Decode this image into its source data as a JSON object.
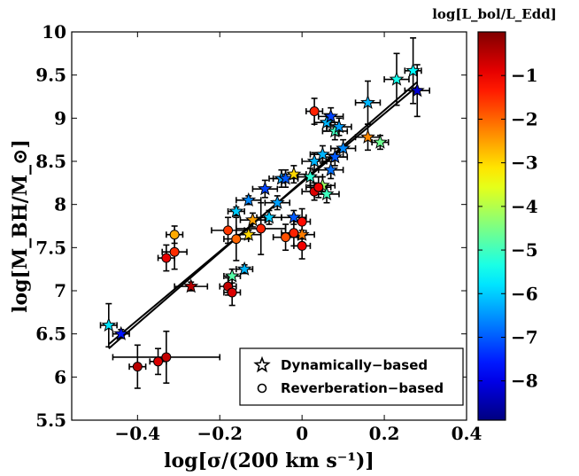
{
  "chart_data": {
    "type": "scatter",
    "xlabel": "log[σ/(200 km s⁻¹)]",
    "ylabel": "log[M_BH/M_⊙]",
    "colorbar_label": "log[L_bol/L_Edd]",
    "xlim": [
      -0.56,
      0.4
    ],
    "ylim": [
      5.5,
      10.0
    ],
    "xticks": [
      "−0.4",
      "−0.2",
      "0",
      "0.2",
      "0.4"
    ],
    "xtick_values": [
      -0.4,
      -0.2,
      0,
      0.2,
      0.4
    ],
    "yticks": [
      "5.5",
      "6",
      "6.5",
      "7",
      "7.5",
      "8",
      "8.5",
      "9",
      "9.5",
      "10"
    ],
    "ytick_values": [
      5.5,
      6,
      6.5,
      7,
      7.5,
      8,
      8.5,
      9,
      9.5,
      10
    ],
    "colorbar": {
      "range": [
        -8.9,
        0.0
      ],
      "ticks": [
        "−1",
        "−2",
        "−3",
        "−4",
        "−5",
        "−6",
        "−7",
        "−8"
      ],
      "tick_values": [
        -1,
        -2,
        -3,
        -4,
        -5,
        -6,
        -7,
        -8
      ],
      "colormap": "jet"
    },
    "legend": {
      "position": "bottom-right",
      "entries": [
        {
          "label": "Dynamically−based",
          "marker": "star"
        },
        {
          "label": "Reverberation−based",
          "marker": "circle"
        }
      ]
    },
    "fit_lines": [
      {
        "x": [
          -0.47,
          0.28
        ],
        "y": [
          6.38,
          9.37
        ]
      },
      {
        "x": [
          -0.47,
          0.28
        ],
        "y": [
          6.33,
          9.42
        ]
      }
    ],
    "series": [
      {
        "name": "Dynamically−based",
        "marker": "star",
        "points": [
          {
            "x": -0.47,
            "y": 6.6,
            "xerr": 0.02,
            "yerr": 0.25,
            "c": -5.8
          },
          {
            "x": -0.44,
            "y": 6.5,
            "xerr": 0.02,
            "yerr": 0.05,
            "c": -7.6
          },
          {
            "x": -0.27,
            "y": 7.05,
            "xerr": 0.04,
            "yerr": 0.05,
            "c": -0.5
          },
          {
            "x": -0.17,
            "y": 7.17,
            "xerr": 0.02,
            "yerr": 0.08,
            "c": -4.8
          },
          {
            "x": -0.14,
            "y": 7.25,
            "xerr": 0.02,
            "yerr": 0.05,
            "c": -6.2
          },
          {
            "x": -0.13,
            "y": 7.65,
            "xerr": 0.03,
            "yerr": 0.05,
            "c": -3.0
          },
          {
            "x": -0.12,
            "y": 7.82,
            "xerr": 0.03,
            "yerr": 0.08,
            "c": -2.5
          },
          {
            "x": -0.16,
            "y": 7.92,
            "xerr": 0.02,
            "yerr": 0.05,
            "c": -6.0
          },
          {
            "x": -0.13,
            "y": 8.05,
            "xerr": 0.03,
            "yerr": 0.05,
            "c": -6.6
          },
          {
            "x": -0.08,
            "y": 7.85,
            "xerr": 0.03,
            "yerr": 0.08,
            "c": -6.0
          },
          {
            "x": -0.09,
            "y": 8.18,
            "xerr": 0.03,
            "yerr": 0.1,
            "c": -7.2
          },
          {
            "x": -0.05,
            "y": 8.3,
            "xerr": 0.03,
            "yerr": 0.1,
            "c": -6.4
          },
          {
            "x": -0.04,
            "y": 8.3,
            "xerr": 0.03,
            "yerr": 0.1,
            "c": -7.0
          },
          {
            "x": -0.06,
            "y": 8.02,
            "xerr": 0.03,
            "yerr": 0.08,
            "c": -6.4
          },
          {
            "x": -0.02,
            "y": 7.85,
            "xerr": 0.03,
            "yerr": 0.08,
            "c": -7.0
          },
          {
            "x": 0.0,
            "y": 7.65,
            "xerr": 0.03,
            "yerr": 0.05,
            "c": -2.2
          },
          {
            "x": -0.02,
            "y": 8.35,
            "xerr": 0.03,
            "yerr": 0.1,
            "c": -3.0
          },
          {
            "x": 0.02,
            "y": 8.32,
            "xerr": 0.03,
            "yerr": 0.1,
            "c": -5.2
          },
          {
            "x": 0.03,
            "y": 8.5,
            "xerr": 0.03,
            "yerr": 0.1,
            "c": -6.2
          },
          {
            "x": 0.05,
            "y": 8.22,
            "xerr": 0.03,
            "yerr": 0.1,
            "c": -4.2
          },
          {
            "x": 0.06,
            "y": 8.12,
            "xerr": 0.03,
            "yerr": 0.1,
            "c": -5.0
          },
          {
            "x": 0.05,
            "y": 8.58,
            "xerr": 0.03,
            "yerr": 0.1,
            "c": -6.2
          },
          {
            "x": 0.07,
            "y": 8.4,
            "xerr": 0.03,
            "yerr": 0.1,
            "c": -6.8
          },
          {
            "x": 0.08,
            "y": 8.85,
            "xerr": 0.03,
            "yerr": 0.1,
            "c": -5.0
          },
          {
            "x": 0.08,
            "y": 8.55,
            "xerr": 0.03,
            "yerr": 0.1,
            "c": -7.0
          },
          {
            "x": 0.06,
            "y": 8.95,
            "xerr": 0.03,
            "yerr": 0.1,
            "c": -6.2
          },
          {
            "x": 0.07,
            "y": 9.02,
            "xerr": 0.03,
            "yerr": 0.1,
            "c": -7.2
          },
          {
            "x": 0.09,
            "y": 8.9,
            "xerr": 0.03,
            "yerr": 0.1,
            "c": -6.4
          },
          {
            "x": 0.1,
            "y": 8.65,
            "xerr": 0.03,
            "yerr": 0.1,
            "c": -6.6
          },
          {
            "x": 0.16,
            "y": 8.78,
            "xerr": 0.03,
            "yerr": 0.15,
            "c": -2.3
          },
          {
            "x": 0.19,
            "y": 8.72,
            "xerr": 0.02,
            "yerr": 0.08,
            "c": -4.6
          },
          {
            "x": 0.16,
            "y": 9.18,
            "xerr": 0.03,
            "yerr": 0.25,
            "c": -6.2
          },
          {
            "x": 0.23,
            "y": 9.45,
            "xerr": 0.03,
            "yerr": 0.3,
            "c": -5.4
          },
          {
            "x": 0.27,
            "y": 9.55,
            "xerr": 0.02,
            "yerr": 0.38,
            "c": -5.6
          },
          {
            "x": 0.28,
            "y": 9.32,
            "xerr": 0.03,
            "yerr": 0.3,
            "c": -8.2
          }
        ]
      },
      {
        "name": "Reverberation−based",
        "marker": "circle",
        "points": [
          {
            "x": -0.4,
            "y": 6.12,
            "xerr": 0.02,
            "yerr": 0.25,
            "c": -0.5
          },
          {
            "x": -0.35,
            "y": 6.18,
            "xerr": 0.02,
            "yerr": 0.15,
            "c": -0.8
          },
          {
            "x": -0.33,
            "y": 6.23,
            "xerr": 0.13,
            "yerr": 0.3,
            "c": -0.6
          },
          {
            "x": -0.33,
            "y": 7.38,
            "xerr": 0.02,
            "yerr": 0.15,
            "c": -0.9
          },
          {
            "x": -0.31,
            "y": 7.45,
            "xerr": 0.03,
            "yerr": 0.2,
            "c": -1.5
          },
          {
            "x": -0.31,
            "y": 7.65,
            "xerr": 0.02,
            "yerr": 0.1,
            "c": -2.6
          },
          {
            "x": -0.18,
            "y": 7.05,
            "xerr": 0.02,
            "yerr": 0.1,
            "c": -0.6
          },
          {
            "x": -0.17,
            "y": 6.98,
            "xerr": 0.02,
            "yerr": 0.15,
            "c": -0.8
          },
          {
            "x": -0.18,
            "y": 7.7,
            "xerr": 0.04,
            "yerr": 0.15,
            "c": -1.6
          },
          {
            "x": -0.16,
            "y": 7.6,
            "xerr": 0.03,
            "yerr": 0.25,
            "c": -2.0
          },
          {
            "x": -0.1,
            "y": 7.72,
            "xerr": 0.06,
            "yerr": 0.3,
            "c": -1.4
          },
          {
            "x": -0.04,
            "y": 7.62,
            "xerr": 0.03,
            "yerr": 0.15,
            "c": -1.8
          },
          {
            "x": -0.02,
            "y": 7.67,
            "xerr": 0.03,
            "yerr": 0.15,
            "c": -1.4
          },
          {
            "x": 0.0,
            "y": 7.8,
            "xerr": 0.02,
            "yerr": 0.15,
            "c": -1.2
          },
          {
            "x": 0.0,
            "y": 7.52,
            "xerr": 0.02,
            "yerr": 0.15,
            "c": -1.0
          },
          {
            "x": 0.03,
            "y": 8.15,
            "xerr": 0.03,
            "yerr": 0.1,
            "c": -0.8
          },
          {
            "x": 0.04,
            "y": 8.2,
            "xerr": 0.03,
            "yerr": 0.12,
            "c": -1.0
          },
          {
            "x": 0.03,
            "y": 9.08,
            "xerr": 0.02,
            "yerr": 0.15,
            "c": -1.4
          }
        ]
      }
    ]
  }
}
